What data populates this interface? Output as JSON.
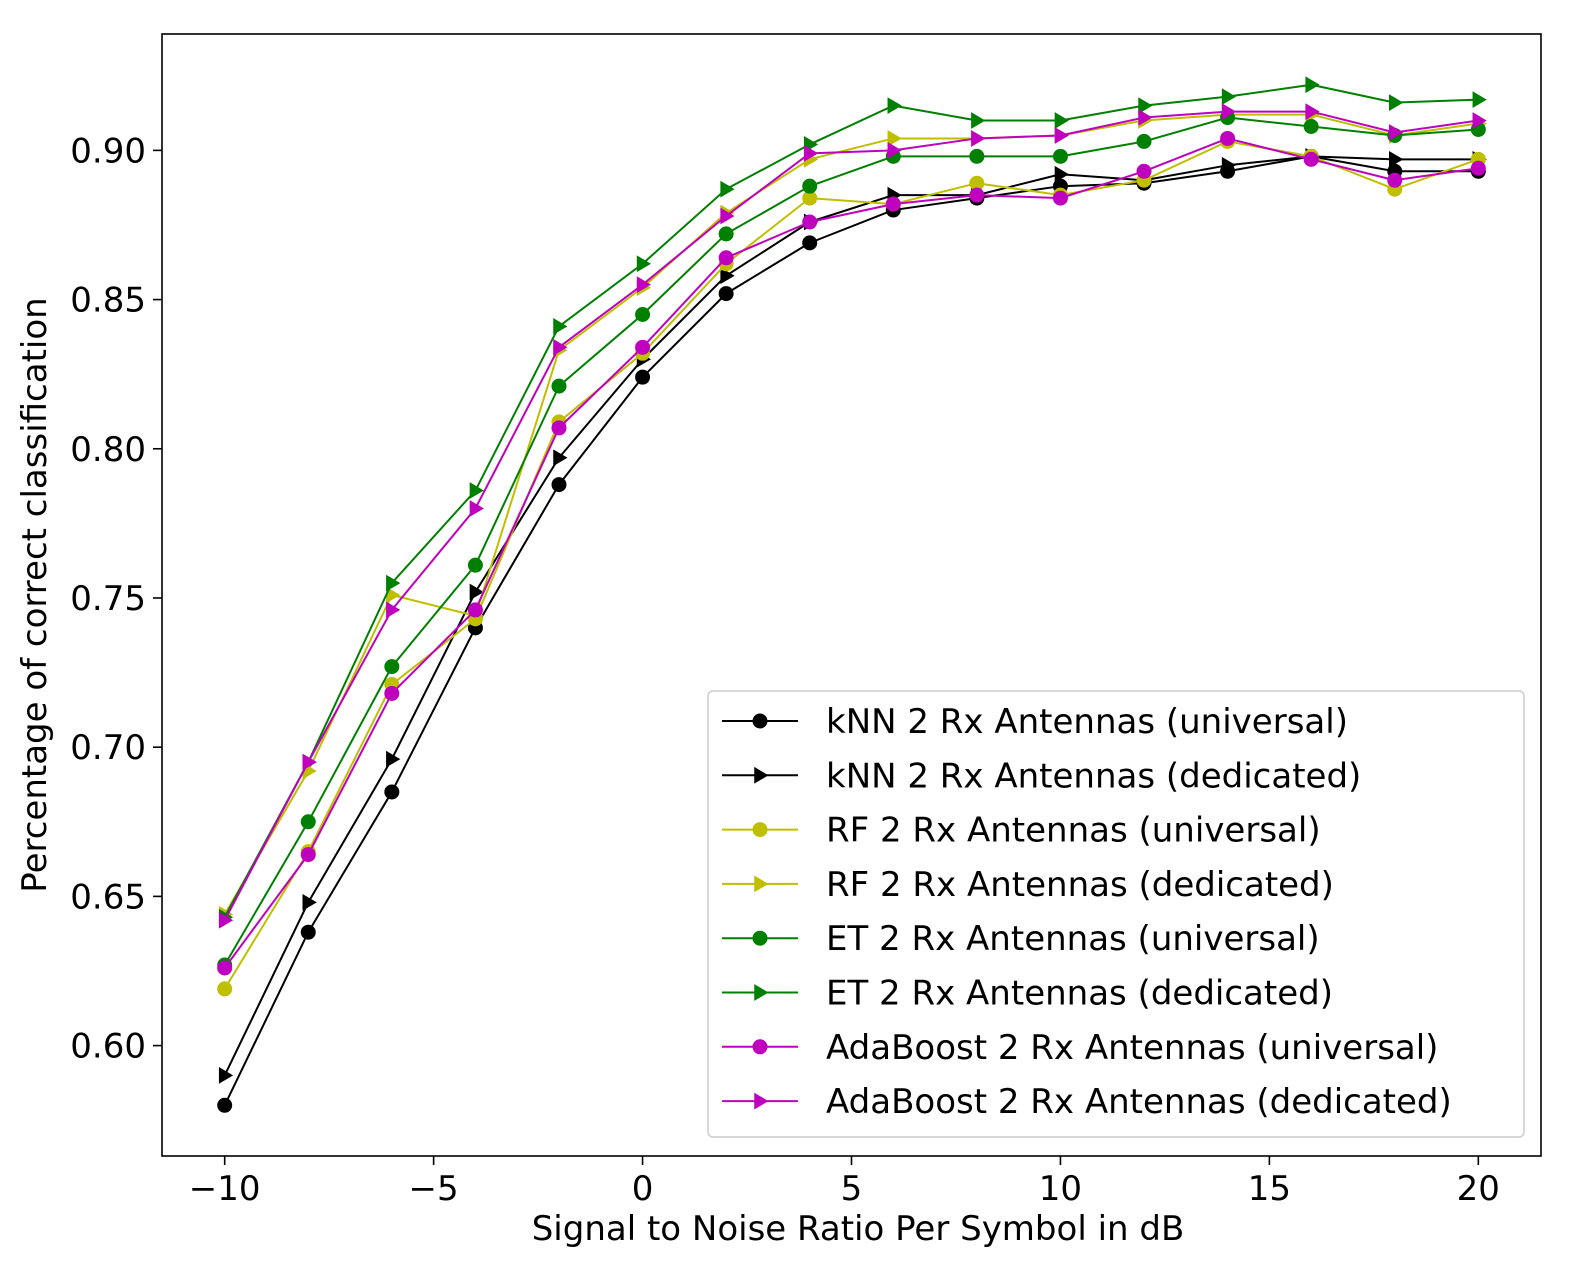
{
  "chart_data": {
    "type": "line",
    "title": "",
    "xlabel": "Signal to Noise Ratio Per Symbol in dB",
    "ylabel": "Percentage of correct classification",
    "xlim": [
      -11.5,
      21.5
    ],
    "ylim": [
      0.563,
      0.939
    ],
    "xticks": [
      -10,
      -5,
      0,
      5,
      10,
      15,
      20
    ],
    "xtick_labels": [
      "−10",
      "−5",
      "0",
      "5",
      "10",
      "15",
      "20"
    ],
    "yticks": [
      0.6,
      0.65,
      0.7,
      0.75,
      0.8,
      0.85,
      0.9
    ],
    "ytick_labels": [
      "0.60",
      "0.65",
      "0.70",
      "0.75",
      "0.80",
      "0.85",
      "0.90"
    ],
    "grid": false,
    "legend_position": "bottom-right",
    "x": [
      -10,
      -8,
      -6,
      -4,
      -2,
      0,
      2,
      4,
      6,
      8,
      10,
      12,
      14,
      16,
      18,
      20
    ],
    "series": [
      {
        "name": "kNN 2 Rx Antennas (universal)",
        "color": "#000000",
        "marker": "circle",
        "values": [
          0.58,
          0.638,
          0.685,
          0.74,
          0.788,
          0.824,
          0.852,
          0.869,
          0.88,
          0.884,
          0.888,
          0.889,
          0.893,
          0.898,
          0.893,
          0.893
        ]
      },
      {
        "name": "kNN 2 Rx Antennas (dedicated)",
        "color": "#000000",
        "marker": "triangle-right",
        "values": [
          0.59,
          0.648,
          0.696,
          0.752,
          0.797,
          0.83,
          0.858,
          0.876,
          0.885,
          0.885,
          0.892,
          0.89,
          0.895,
          0.898,
          0.897,
          0.897
        ]
      },
      {
        "name": "RF 2 Rx Antennas (universal)",
        "color": "#bfbf00",
        "marker": "circle",
        "values": [
          0.619,
          0.665,
          0.721,
          0.743,
          0.809,
          0.832,
          0.862,
          0.884,
          0.882,
          0.889,
          0.885,
          0.89,
          0.903,
          0.898,
          0.887,
          0.897
        ]
      },
      {
        "name": "RF 2 Rx Antennas (dedicated)",
        "color": "#bfbf00",
        "marker": "triangle-right",
        "values": [
          0.644,
          0.692,
          0.751,
          0.744,
          0.833,
          0.854,
          0.879,
          0.897,
          0.904,
          0.904,
          0.905,
          0.91,
          0.912,
          0.912,
          0.905,
          0.909
        ]
      },
      {
        "name": "ET 2 Rx Antennas (universal)",
        "color": "#008000",
        "marker": "circle",
        "values": [
          0.627,
          0.675,
          0.727,
          0.761,
          0.821,
          0.845,
          0.872,
          0.888,
          0.898,
          0.898,
          0.898,
          0.903,
          0.911,
          0.908,
          0.905,
          0.907
        ]
      },
      {
        "name": "ET 2 Rx Antennas (dedicated)",
        "color": "#008000",
        "marker": "triangle-right",
        "values": [
          0.643,
          0.695,
          0.755,
          0.786,
          0.841,
          0.862,
          0.887,
          0.902,
          0.915,
          0.91,
          0.91,
          0.915,
          0.918,
          0.922,
          0.916,
          0.917
        ]
      },
      {
        "name": "AdaBoost 2 Rx Antennas (universal)",
        "color": "#bf00bf",
        "marker": "circle",
        "values": [
          0.626,
          0.664,
          0.718,
          0.746,
          0.807,
          0.834,
          0.864,
          0.876,
          0.882,
          0.885,
          0.884,
          0.893,
          0.904,
          0.897,
          0.89,
          0.894
        ]
      },
      {
        "name": "AdaBoost 2 Rx Antennas (dedicated)",
        "color": "#bf00bf",
        "marker": "triangle-right",
        "values": [
          0.642,
          0.695,
          0.746,
          0.78,
          0.834,
          0.855,
          0.878,
          0.899,
          0.9,
          0.904,
          0.905,
          0.911,
          0.913,
          0.913,
          0.906,
          0.91
        ]
      }
    ]
  }
}
